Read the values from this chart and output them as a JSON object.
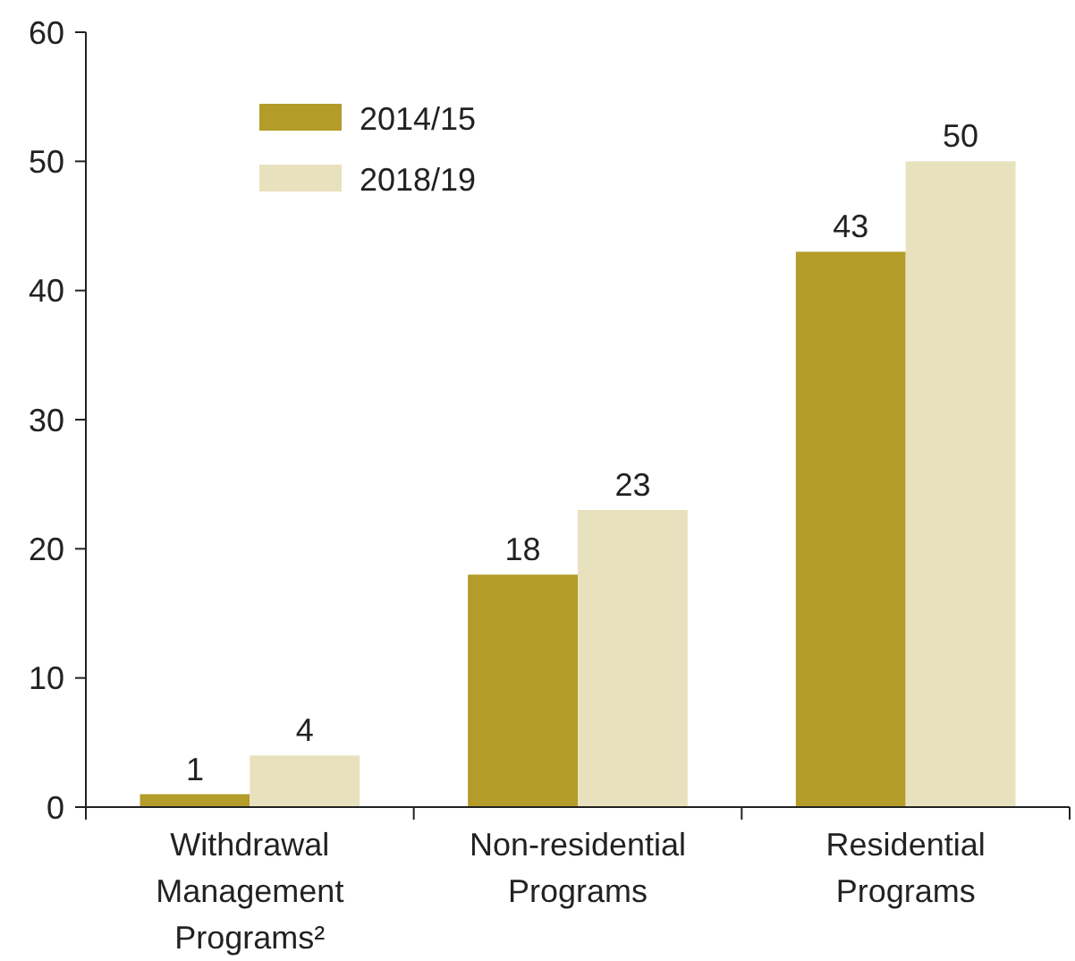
{
  "chart_data": {
    "type": "bar",
    "categories": [
      "Withdrawal Management Programs²",
      "Non-residential Programs",
      "Residential Programs"
    ],
    "series": [
      {
        "name": "2014/15",
        "color": "#b39c2a",
        "values": [
          1,
          18,
          43
        ]
      },
      {
        "name": "2018/19",
        "color": "#e8e1bd",
        "values": [
          4,
          23,
          50
        ]
      }
    ],
    "ylim": [
      0,
      60
    ],
    "yticks": [
      0,
      10,
      20,
      30,
      40,
      50,
      60
    ],
    "data_labels": true,
    "legend": "top left",
    "grid": false
  }
}
